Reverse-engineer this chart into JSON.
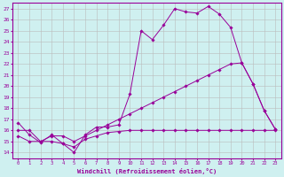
{
  "xlabel": "Windchill (Refroidissement éolien,°C)",
  "bg_color": "#cff0f0",
  "line_color": "#990099",
  "grid_color": "#bbbbbb",
  "xlim": [
    -0.5,
    23.5
  ],
  "ylim": [
    13.5,
    27.5
  ],
  "yticks": [
    14,
    15,
    16,
    17,
    18,
    19,
    20,
    21,
    22,
    23,
    24,
    25,
    26,
    27
  ],
  "xticks": [
    0,
    1,
    2,
    3,
    4,
    5,
    6,
    7,
    8,
    9,
    10,
    11,
    12,
    13,
    14,
    15,
    16,
    17,
    18,
    19,
    20,
    21,
    22,
    23
  ],
  "line1_x": [
    0,
    1,
    2,
    3,
    4,
    5,
    6,
    7,
    8,
    9,
    10,
    11,
    12,
    13,
    14,
    15,
    16,
    17,
    18,
    19,
    20,
    21,
    22,
    23
  ],
  "line1_y": [
    16.7,
    15.6,
    14.9,
    15.6,
    14.8,
    14.0,
    15.6,
    16.3,
    16.3,
    16.5,
    19.3,
    25.0,
    24.2,
    25.5,
    27.0,
    26.7,
    26.6,
    27.2,
    26.5,
    25.3,
    22.1,
    20.2,
    17.8,
    16.1
  ],
  "line2_x": [
    0,
    1,
    2,
    3,
    4,
    5,
    6,
    7,
    8,
    9,
    10,
    11,
    12,
    13,
    14,
    15,
    16,
    17,
    18,
    19,
    20,
    21,
    22,
    23
  ],
  "line2_y": [
    16.0,
    16.0,
    15.0,
    15.5,
    15.5,
    15.0,
    15.5,
    16.0,
    16.5,
    17.0,
    17.5,
    18.0,
    18.5,
    19.0,
    19.5,
    20.0,
    20.5,
    21.0,
    21.5,
    22.0,
    22.1,
    20.2,
    17.8,
    16.1
  ],
  "line3_x": [
    0,
    1,
    2,
    3,
    4,
    5,
    6,
    7,
    8,
    9,
    10,
    11,
    12,
    13,
    14,
    15,
    16,
    17,
    18,
    19,
    20,
    21,
    22,
    23
  ],
  "line3_y": [
    15.5,
    15.0,
    15.0,
    15.0,
    14.8,
    14.5,
    15.2,
    15.5,
    15.8,
    15.9,
    16.0,
    16.0,
    16.0,
    16.0,
    16.0,
    16.0,
    16.0,
    16.0,
    16.0,
    16.0,
    16.0,
    16.0,
    16.0,
    16.0
  ]
}
